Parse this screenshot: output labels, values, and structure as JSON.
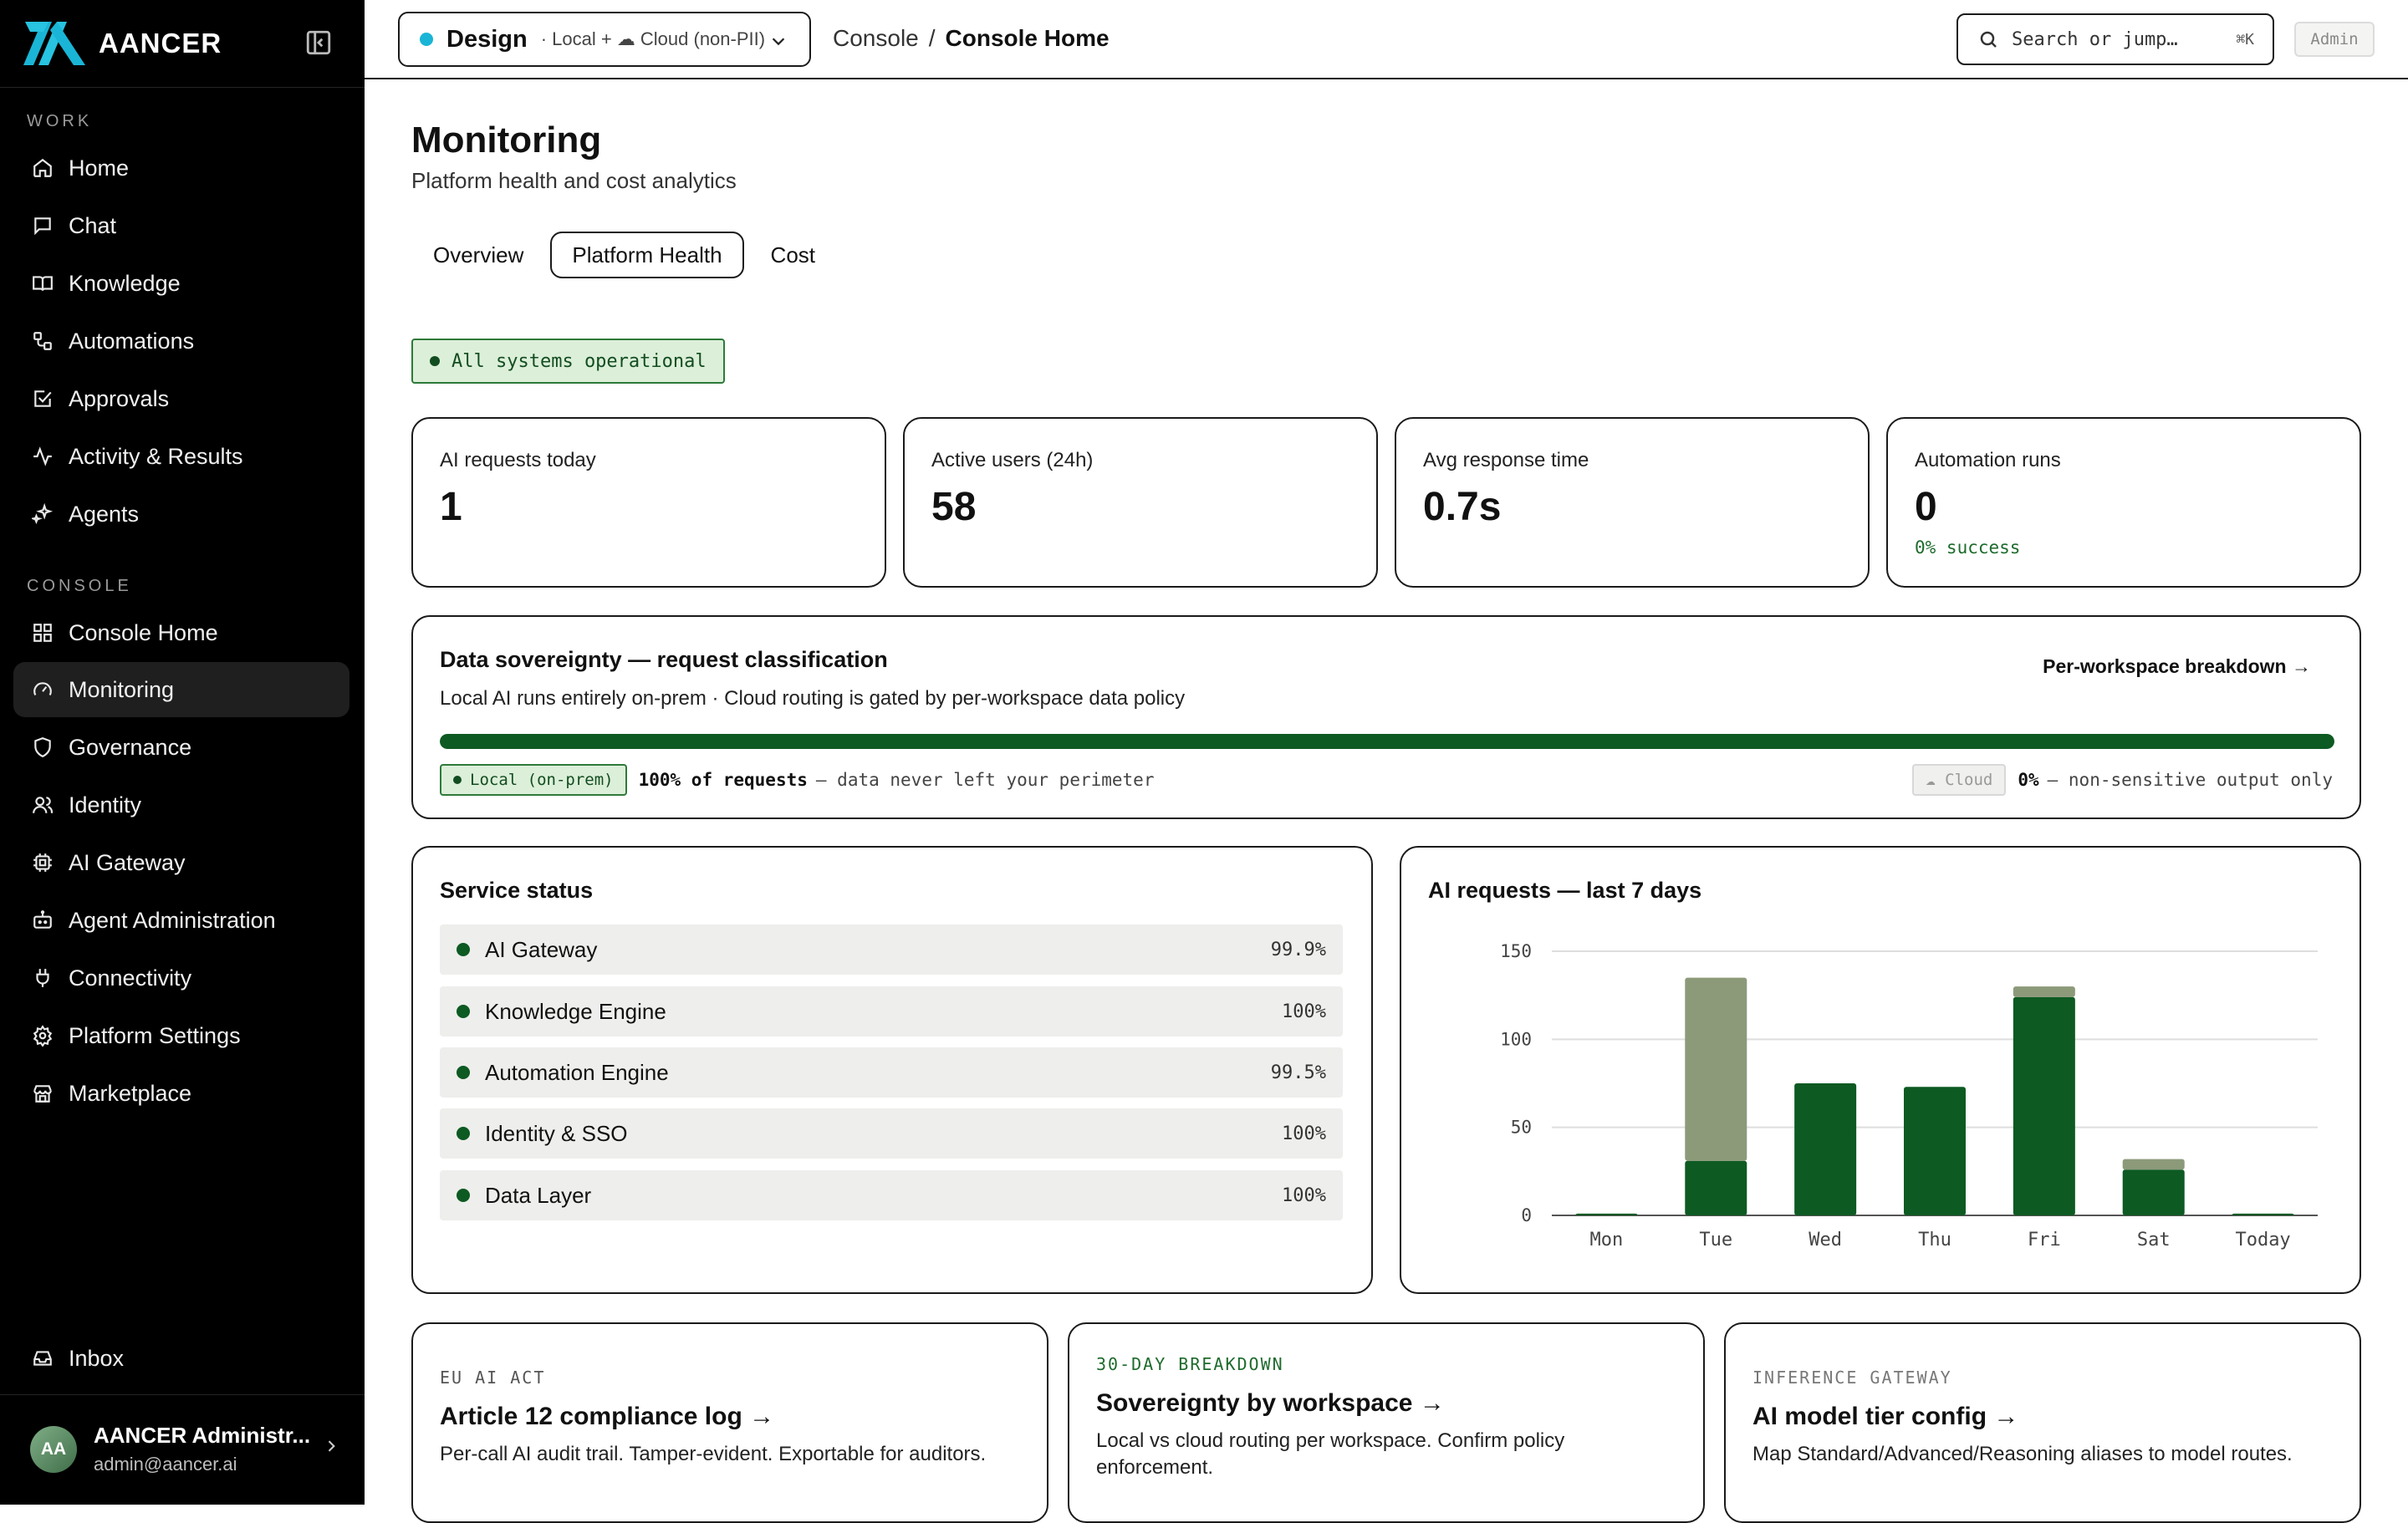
{
  "brand": {
    "name": "AANCER"
  },
  "sidebar": {
    "work_label": "WORK",
    "console_label": "CONSOLE",
    "work_items": [
      {
        "label": "Home",
        "icon": "home-icon"
      },
      {
        "label": "Chat",
        "icon": "chat-icon"
      },
      {
        "label": "Knowledge",
        "icon": "book-icon"
      },
      {
        "label": "Automations",
        "icon": "workflow-icon"
      },
      {
        "label": "Approvals",
        "icon": "checkbox-icon"
      },
      {
        "label": "Activity & Results",
        "icon": "activity-icon"
      },
      {
        "label": "Agents",
        "icon": "sparkle-icon"
      }
    ],
    "console_items": [
      {
        "label": "Console Home",
        "icon": "grid-icon"
      },
      {
        "label": "Monitoring",
        "icon": "gauge-icon",
        "active": true
      },
      {
        "label": "Governance",
        "icon": "shield-icon"
      },
      {
        "label": "Identity",
        "icon": "users-icon"
      },
      {
        "label": "AI Gateway",
        "icon": "chip-icon"
      },
      {
        "label": "Agent Administration",
        "icon": "bot-icon"
      },
      {
        "label": "Connectivity",
        "icon": "plug-icon"
      },
      {
        "label": "Platform Settings",
        "icon": "gear-icon"
      },
      {
        "label": "Marketplace",
        "icon": "store-icon"
      }
    ],
    "inbox_label": "Inbox",
    "user": {
      "initials": "AA",
      "name": "AANCER Administr...",
      "email": "admin@aancer.ai"
    }
  },
  "topbar": {
    "workspace": {
      "name": "Design",
      "sub": "· Local + ☁ Cloud (non-PII)",
      "dot_color": "#1ab5d6"
    },
    "breadcrumb": {
      "root": "Console",
      "sep": "/",
      "current": "Console Home"
    },
    "search": {
      "placeholder": "Search or jump…",
      "shortcut": "⌘K"
    },
    "role_badge": "Admin"
  },
  "page": {
    "title": "Monitoring",
    "subtitle": "Platform health and cost analytics",
    "tabs": [
      "Overview",
      "Platform Health",
      "Cost"
    ],
    "active_tab": "Platform Health",
    "status": "All systems operational"
  },
  "kpis": [
    {
      "label": "AI requests today",
      "value": "1"
    },
    {
      "label": "Active users (24h)",
      "value": "58"
    },
    {
      "label": "Avg response time",
      "value": "0.7s"
    },
    {
      "label": "Automation runs",
      "value": "0",
      "sub": "0% success"
    }
  ],
  "sovereignty": {
    "title": "Data sovereignty — request classification",
    "link": "Per-workspace breakdown →",
    "description": "Local AI runs entirely on-prem · Cloud routing is gated by per-workspace data policy",
    "local_share": 1.0,
    "local_chip": "Local (on-prem)",
    "local_value": "100% of requests",
    "local_note": "— data never left your perimeter",
    "cloud_chip": "☁ Cloud",
    "cloud_value": "0%",
    "cloud_note": "— non-sensitive output only"
  },
  "services": {
    "title": "Service status",
    "items": [
      {
        "name": "AI Gateway",
        "uptime": "99.9%"
      },
      {
        "name": "Knowledge Engine",
        "uptime": "100%"
      },
      {
        "name": "Automation Engine",
        "uptime": "99.5%"
      },
      {
        "name": "Identity & SSO",
        "uptime": "100%"
      },
      {
        "name": "Data Layer",
        "uptime": "100%"
      }
    ]
  },
  "chart_data": {
    "type": "bar",
    "title": "AI requests — last 7 days",
    "categories": [
      "Mon",
      "Tue",
      "Wed",
      "Thu",
      "Fri",
      "Sat",
      "Today"
    ],
    "series": [
      {
        "values": [
          1,
          31,
          75,
          73,
          124,
          26,
          1
        ],
        "color": "#0d5a22"
      },
      {
        "values": [
          0,
          104,
          0,
          0,
          6,
          6,
          0
        ],
        "color": "#8c9a7a"
      }
    ],
    "stacked": true,
    "yticks": [
      0,
      50,
      100,
      150
    ],
    "ylim": [
      0,
      150
    ],
    "grid": true
  },
  "link_cards": [
    {
      "eyebrow": "EU AI ACT",
      "eyebrow_color": "#555",
      "title": "Article 12 compliance log →",
      "desc": "Per-call AI audit trail. Tamper-evident. Exportable for auditors."
    },
    {
      "eyebrow": "30-DAY BREAKDOWN",
      "eyebrow_color": "#1e6b2c",
      "title": "Sovereignty by workspace →",
      "desc": "Local vs cloud routing per workspace. Confirm policy enforcement."
    },
    {
      "eyebrow": "INFERENCE GATEWAY",
      "eyebrow_color": "#777",
      "title": "AI model tier config →",
      "desc": "Map Standard/Advanced/Reasoning aliases to model routes."
    }
  ]
}
